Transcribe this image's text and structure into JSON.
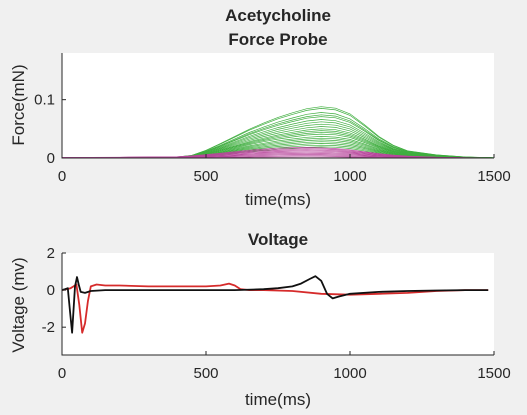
{
  "chart_data": [
    {
      "type": "line",
      "title": [
        "Acetycholine",
        "Force Probe"
      ],
      "xlabel": "time(ms)",
      "ylabel": "Force(mN)",
      "xlim": [
        0,
        1500
      ],
      "ylim": [
        0,
        0.18
      ],
      "xticks": [
        0,
        500,
        1000,
        1500
      ],
      "xtick_labels": [
        "0",
        "500",
        "1000",
        "1500"
      ],
      "yticks": [
        0,
        0.1
      ],
      "ytick_labels": [
        "0",
        "0.1"
      ],
      "grid": false,
      "legend": "none",
      "series_groups": [
        {
          "color": "#3fae3f",
          "x": [
            0,
            100,
            200,
            300,
            400,
            450,
            500,
            550,
            600,
            650,
            700,
            750,
            800,
            850,
            900,
            950,
            1000,
            1050,
            1100,
            1150,
            1200,
            1300,
            1400,
            1500
          ],
          "shape": [
            0,
            0.005,
            0.01,
            0.015,
            0.02,
            0.05,
            0.15,
            0.28,
            0.42,
            0.56,
            0.68,
            0.79,
            0.88,
            0.96,
            1.0,
            0.97,
            0.86,
            0.65,
            0.42,
            0.25,
            0.14,
            0.06,
            0.02,
            0.005
          ],
          "peaks": [
            0.088,
            0.085,
            0.078,
            0.074,
            0.071,
            0.066,
            0.062,
            0.058,
            0.054,
            0.05,
            0.047,
            0.044,
            0.041,
            0.037,
            0.034,
            0.031,
            0.028,
            0.025,
            0.022,
            0.019
          ]
        },
        {
          "color": "#b8479c",
          "x": [
            0,
            100,
            200,
            300,
            400,
            450,
            500,
            550,
            600,
            650,
            700,
            750,
            800,
            850,
            900,
            950,
            1000,
            1050,
            1100,
            1150,
            1200,
            1300,
            1400,
            1500
          ],
          "shape": [
            0.05,
            0.06,
            0.08,
            0.1,
            0.12,
            0.2,
            0.32,
            0.46,
            0.6,
            0.74,
            0.85,
            0.93,
            0.98,
            1.0,
            0.97,
            0.9,
            0.78,
            0.6,
            0.42,
            0.28,
            0.18,
            0.08,
            0.03,
            0.01
          ],
          "peaks": [
            0.018,
            0.016,
            0.014,
            0.012,
            0.01,
            0.008,
            0.006,
            0.004,
            0.002
          ]
        }
      ]
    },
    {
      "type": "line",
      "title": "Voltage",
      "xlabel": "time(ms)",
      "ylabel": "Voltage (mv)",
      "xlim": [
        0,
        1500
      ],
      "ylim": [
        -3.5,
        2
      ],
      "xticks": [
        0,
        500,
        1000,
        1500
      ],
      "xtick_labels": [
        "0",
        "500",
        "1000",
        "1500"
      ],
      "yticks": [
        2,
        0,
        -2
      ],
      "ytick_labels": [
        "2",
        "0",
        "-2"
      ],
      "grid": false,
      "legend": "none",
      "series": [
        {
          "color": "#d62b2b",
          "x": [
            0,
            15,
            30,
            40,
            50,
            60,
            70,
            80,
            90,
            100,
            120,
            150,
            200,
            300,
            400,
            500,
            550,
            580,
            600,
            620,
            650,
            700,
            800,
            900,
            1000,
            1100,
            1200,
            1300,
            1400,
            1480
          ],
          "y": [
            0,
            0.05,
            0.1,
            0.2,
            0.3,
            -0.8,
            -2.3,
            -1.8,
            -0.6,
            0.2,
            0.3,
            0.25,
            0.25,
            0.2,
            0.2,
            0.2,
            0.25,
            0.35,
            0.25,
            0.05,
            0,
            0,
            -0.05,
            -0.2,
            -0.25,
            -0.2,
            -0.15,
            -0.05,
            0,
            0
          ]
        },
        {
          "color": "#111111",
          "x": [
            0,
            10,
            20,
            28,
            35,
            45,
            52,
            58,
            65,
            80,
            100,
            150,
            200,
            300,
            400,
            500,
            600,
            700,
            750,
            800,
            830,
            860,
            880,
            900,
            920,
            940,
            960,
            1000,
            1100,
            1200,
            1300,
            1400,
            1480
          ],
          "y": [
            0,
            0.05,
            0.1,
            -1.2,
            -2.3,
            0.2,
            0.7,
            0.3,
            -0.1,
            -0.15,
            -0.05,
            0,
            0,
            0,
            0,
            0,
            0,
            0.05,
            0.1,
            0.2,
            0.35,
            0.6,
            0.75,
            0.5,
            -0.2,
            -0.45,
            -0.35,
            -0.2,
            -0.1,
            -0.05,
            -0.02,
            0,
            0
          ]
        }
      ]
    }
  ]
}
